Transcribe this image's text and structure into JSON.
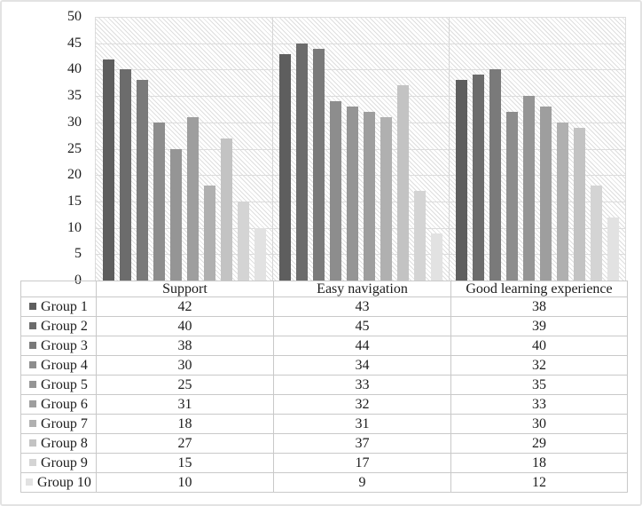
{
  "chart_data": {
    "type": "bar",
    "title": "",
    "xlabel": "",
    "ylabel": "",
    "categories": [
      "Support",
      "Easy navigation",
      "Good learning experience"
    ],
    "series": [
      {
        "name": "Group 1",
        "color": "#5e5e5e",
        "values": [
          42,
          43,
          38
        ]
      },
      {
        "name": "Group 2",
        "color": "#6c6c6c",
        "values": [
          40,
          45,
          39
        ]
      },
      {
        "name": "Group 3",
        "color": "#7a7a7a",
        "values": [
          38,
          44,
          40
        ]
      },
      {
        "name": "Group 4",
        "color": "#8d8d8d",
        "values": [
          30,
          34,
          32
        ]
      },
      {
        "name": "Group 5",
        "color": "#959595",
        "values": [
          25,
          33,
          35
        ]
      },
      {
        "name": "Group 6",
        "color": "#9e9e9e",
        "values": [
          31,
          32,
          33
        ]
      },
      {
        "name": "Group 7",
        "color": "#b0b0b0",
        "values": [
          18,
          31,
          30
        ]
      },
      {
        "name": "Group 8",
        "color": "#c3c3c3",
        "values": [
          27,
          37,
          29
        ]
      },
      {
        "name": "Group 9",
        "color": "#d4d4d4",
        "values": [
          15,
          17,
          18
        ]
      },
      {
        "name": "Group 10",
        "color": "#e2e2e2",
        "values": [
          10,
          9,
          12
        ]
      }
    ],
    "ylim": [
      0,
      50
    ],
    "yticks": [
      0,
      5,
      10,
      15,
      20,
      25,
      30,
      35,
      40,
      45,
      50
    ],
    "grid": true,
    "plot_fill_pattern": "light-downward-diagonal-hatch",
    "legend_position": "data-table-left-column"
  },
  "colors": {
    "gridline": "#dcdcdc",
    "hatch_line": "#dedede",
    "table_border": "#c9c9c9",
    "figure_border": "#e3e3e3",
    "text": "#1c1c1c"
  }
}
